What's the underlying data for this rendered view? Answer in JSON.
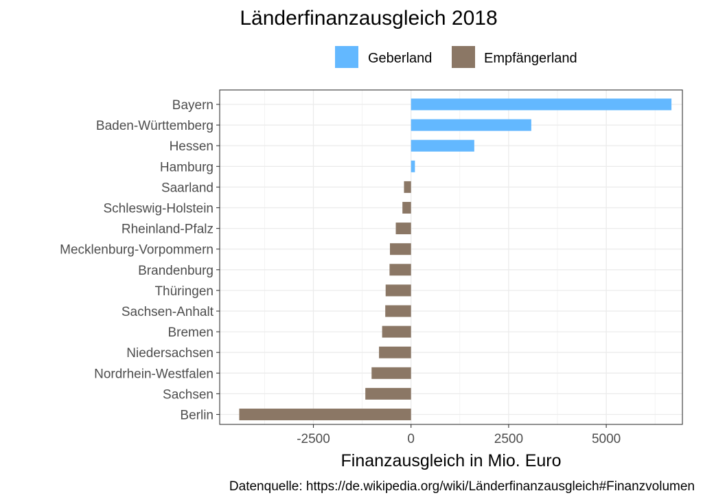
{
  "colors": {
    "Geberland": "#63b8ff",
    "Empfängerland": "#8b7765"
  },
  "chart_data": {
    "type": "bar",
    "orientation": "horizontal",
    "title": "Länderfinanzausgleich 2018",
    "xlabel": "Finanzausgleich in Mio. Euro",
    "ylabel": "",
    "caption": "Datenquelle: https://de.wikipedia.org/wiki/Länderfinanzausgleich#Finanzvolumen",
    "xlim": [
      -4900,
      6950
    ],
    "xticks": [
      -2500,
      0,
      2500,
      5000
    ],
    "xtick_labels": [
      "-2500",
      "0",
      "2500",
      "5000"
    ],
    "grid": true,
    "legend_position": "top",
    "legend": [
      "Geberland",
      "Empfängerland"
    ],
    "categories": [
      "Bayern",
      "Baden-Württemberg",
      "Hessen",
      "Hamburg",
      "Saarland",
      "Schleswig-Holstein",
      "Rheinland-Pfalz",
      "Mecklenburg-Vorpommern",
      "Brandenburg",
      "Thüringen",
      "Sachsen-Anhalt",
      "Bremen",
      "Niedersachsen",
      "Nordrhein-Westfalen",
      "Sachsen",
      "Berlin"
    ],
    "values": [
      6670,
      3080,
      1620,
      100,
      -180,
      -220,
      -390,
      -540,
      -550,
      -650,
      -660,
      -740,
      -820,
      -1010,
      -1170,
      -4400
    ],
    "groups": [
      "Geberland",
      "Geberland",
      "Geberland",
      "Geberland",
      "Empfängerland",
      "Empfängerland",
      "Empfängerland",
      "Empfängerland",
      "Empfängerland",
      "Empfängerland",
      "Empfängerland",
      "Empfängerland",
      "Empfängerland",
      "Empfängerland",
      "Empfängerland",
      "Empfängerland"
    ]
  }
}
